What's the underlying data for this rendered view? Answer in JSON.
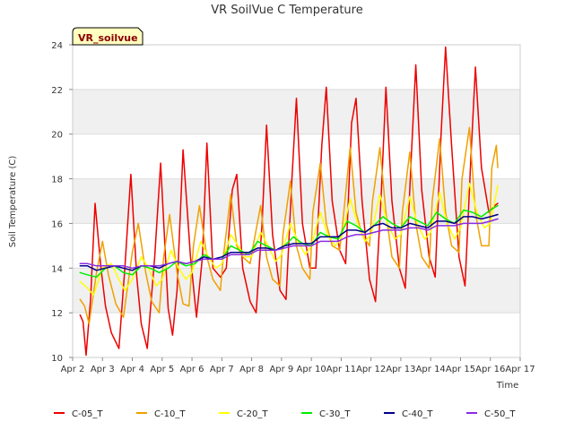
{
  "chart_data": {
    "type": "line",
    "title": "VR SoilVue C Temperature",
    "xlabel": "Time",
    "ylabel": "Soil Temperature (C)",
    "station_badge": "VR_soilvue",
    "x_unit": "date (day of April)",
    "xlim": [
      2,
      17
    ],
    "ylim": [
      10,
      24
    ],
    "x_ticks": [
      2,
      3,
      4,
      5,
      6,
      7,
      8,
      9,
      10,
      11,
      12,
      13,
      14,
      15,
      16,
      17
    ],
    "x_tick_labels": [
      "Apr 2",
      "Apr 3",
      "Apr 4",
      "Apr 5",
      "Apr 6",
      "Apr 7",
      "Apr 8",
      "Apr 9",
      "Apr 10",
      "Apr 11",
      "Apr 12",
      "Apr 13",
      "Apr 14",
      "Apr 15",
      "Apr 16",
      "Apr 17"
    ],
    "y_ticks": [
      10,
      12,
      14,
      16,
      18,
      20,
      22,
      24
    ],
    "y_tick_labels": [
      "10",
      "12",
      "14",
      "16",
      "18",
      "20",
      "22",
      "24"
    ],
    "grid": "horizontal bands",
    "legend_placement": "bottom",
    "series": [
      {
        "name": "C-05_T",
        "color": "#ee0000",
        "width": 1.5,
        "x": [
          2.25,
          2.35,
          2.45,
          2.6,
          2.75,
          2.95,
          3.1,
          3.3,
          3.55,
          3.75,
          3.95,
          4.15,
          4.3,
          4.5,
          4.75,
          4.95,
          5.2,
          5.35,
          5.5,
          5.7,
          5.95,
          6.15,
          6.35,
          6.5,
          6.7,
          6.95,
          7.15,
          7.35,
          7.5,
          7.7,
          7.95,
          8.15,
          8.35,
          8.5,
          8.7,
          8.95,
          9.15,
          9.35,
          9.5,
          9.7,
          9.95,
          10.15,
          10.35,
          10.5,
          10.7,
          10.95,
          11.15,
          11.35,
          11.5,
          11.7,
          11.95,
          12.15,
          12.35,
          12.5,
          12.7,
          12.95,
          13.15,
          13.35,
          13.5,
          13.7,
          13.95,
          14.15,
          14.35,
          14.5,
          14.7,
          14.95,
          15.15,
          15.35,
          15.5,
          15.7,
          15.95,
          16.15,
          16.25
        ],
        "y": [
          11.9,
          11.6,
          10.1,
          12.6,
          16.9,
          14.0,
          12.3,
          11.1,
          10.4,
          14.0,
          18.2,
          13.6,
          11.5,
          10.4,
          14.5,
          18.7,
          12.2,
          11.0,
          13.0,
          19.3,
          14.5,
          11.8,
          14.5,
          19.6,
          14.0,
          13.6,
          14.0,
          17.5,
          18.2,
          14.0,
          12.5,
          12.0,
          16.0,
          20.4,
          15.5,
          13.0,
          12.6,
          18.0,
          21.6,
          16.0,
          14.0,
          14.0,
          19.5,
          22.1,
          17.0,
          14.8,
          14.2,
          20.5,
          21.6,
          17.0,
          13.5,
          12.5,
          17.5,
          22.1,
          17.0,
          14.0,
          13.1,
          19.0,
          23.1,
          17.5,
          14.5,
          13.6,
          20.0,
          23.9,
          19.5,
          14.5,
          13.2,
          19.0,
          23.0,
          18.5,
          16.5,
          16.8,
          16.9
        ]
      },
      {
        "name": "C-10_T",
        "color": "#f0a000",
        "width": 1.5,
        "x": [
          2.25,
          2.4,
          2.55,
          2.8,
          3.0,
          3.2,
          3.45,
          3.7,
          4.0,
          4.2,
          4.45,
          4.65,
          4.9,
          5.05,
          5.25,
          5.5,
          5.7,
          5.9,
          6.05,
          6.25,
          6.5,
          6.7,
          6.95,
          7.05,
          7.3,
          7.5,
          7.7,
          7.95,
          8.05,
          8.3,
          8.5,
          8.7,
          8.95,
          9.05,
          9.3,
          9.5,
          9.7,
          9.95,
          10.05,
          10.3,
          10.5,
          10.7,
          10.95,
          11.05,
          11.3,
          11.5,
          11.7,
          11.95,
          12.05,
          12.3,
          12.5,
          12.7,
          12.95,
          13.05,
          13.3,
          13.5,
          13.7,
          13.95,
          14.05,
          14.3,
          14.5,
          14.7,
          14.95,
          15.05,
          15.3,
          15.5,
          15.7,
          15.95,
          16.05,
          16.2,
          16.25
        ],
        "y": [
          12.6,
          12.3,
          11.5,
          13.8,
          15.2,
          13.7,
          12.4,
          11.8,
          14.7,
          16.0,
          13.8,
          12.5,
          12.0,
          14.5,
          16.4,
          13.8,
          12.4,
          12.3,
          15.0,
          16.8,
          14.5,
          13.5,
          13.0,
          14.5,
          17.3,
          15.0,
          14.5,
          14.2,
          15.0,
          16.8,
          14.5,
          13.5,
          13.2,
          15.5,
          17.9,
          15.0,
          14.0,
          13.5,
          16.5,
          18.7,
          16.0,
          15.0,
          14.8,
          16.0,
          19.4,
          16.5,
          15.5,
          15.0,
          17.0,
          19.4,
          16.5,
          14.5,
          14.0,
          16.5,
          19.2,
          16.0,
          14.5,
          14.0,
          17.0,
          19.8,
          16.5,
          15.0,
          14.7,
          18.0,
          20.3,
          16.5,
          15.0,
          15.0,
          18.5,
          19.5,
          18.5
        ]
      },
      {
        "name": "C-20_T",
        "color": "#ffff00",
        "width": 1.5,
        "x": [
          2.25,
          2.5,
          2.7,
          3.0,
          3.3,
          3.55,
          3.75,
          4.0,
          4.3,
          4.55,
          4.8,
          5.0,
          5.3,
          5.55,
          5.8,
          6.0,
          6.3,
          6.55,
          6.8,
          7.0,
          7.3,
          7.55,
          7.8,
          8.0,
          8.3,
          8.55,
          8.8,
          9.0,
          9.3,
          9.55,
          9.8,
          10.0,
          10.3,
          10.55,
          10.8,
          11.0,
          11.3,
          11.55,
          11.8,
          12.0,
          12.3,
          12.55,
          12.8,
          13.0,
          13.3,
          13.55,
          13.8,
          14.0,
          14.3,
          14.55,
          14.8,
          15.0,
          15.3,
          15.55,
          15.8,
          16.0,
          16.25
        ],
        "y": [
          13.4,
          13.1,
          12.8,
          14.0,
          14.2,
          13.5,
          13.0,
          13.5,
          14.5,
          14.0,
          13.2,
          13.5,
          14.8,
          14.0,
          13.5,
          13.8,
          15.2,
          14.5,
          14.0,
          14.2,
          15.5,
          15.0,
          14.5,
          14.5,
          15.6,
          15.0,
          14.3,
          14.6,
          16.0,
          15.2,
          14.6,
          15.0,
          16.5,
          15.5,
          15.0,
          15.3,
          17.1,
          16.0,
          15.2,
          15.5,
          17.3,
          16.0,
          15.3,
          15.5,
          17.2,
          16.0,
          15.3,
          15.6,
          17.4,
          16.0,
          15.3,
          15.8,
          17.8,
          16.5,
          15.8,
          16.0,
          17.7
        ]
      },
      {
        "name": "C-30_T",
        "color": "#00ee00",
        "width": 1.5,
        "x": [
          2.25,
          2.5,
          2.8,
          3.1,
          3.4,
          3.7,
          4.0,
          4.3,
          4.6,
          4.9,
          5.2,
          5.5,
          5.8,
          6.1,
          6.4,
          6.7,
          7.0,
          7.3,
          7.6,
          7.9,
          8.2,
          8.5,
          8.8,
          9.1,
          9.4,
          9.7,
          10.0,
          10.3,
          10.6,
          10.9,
          11.2,
          11.5,
          11.8,
          12.1,
          12.4,
          12.7,
          13.0,
          13.3,
          13.6,
          13.9,
          14.2,
          14.5,
          14.8,
          15.1,
          15.4,
          15.7,
          16.0,
          16.25
        ],
        "y": [
          13.8,
          13.7,
          13.6,
          14.0,
          14.1,
          13.8,
          13.7,
          14.1,
          14.0,
          13.8,
          14.0,
          14.3,
          14.1,
          14.2,
          14.6,
          14.4,
          14.4,
          15.0,
          14.8,
          14.6,
          15.2,
          15.0,
          14.8,
          15.0,
          15.4,
          15.1,
          15.0,
          15.6,
          15.4,
          15.3,
          16.1,
          15.9,
          15.6,
          15.9,
          16.3,
          16.0,
          15.8,
          16.3,
          16.1,
          15.9,
          16.5,
          16.2,
          16.0,
          16.6,
          16.5,
          16.3,
          16.6,
          16.8
        ]
      },
      {
        "name": "C-40_T",
        "color": "#00008b",
        "width": 1.5,
        "x": [
          2.25,
          2.5,
          2.8,
          3.1,
          3.4,
          3.7,
          4.0,
          4.3,
          4.6,
          4.9,
          5.2,
          5.5,
          5.8,
          6.1,
          6.4,
          6.7,
          7.0,
          7.3,
          7.6,
          7.9,
          8.2,
          8.5,
          8.8,
          9.1,
          9.4,
          9.7,
          10.0,
          10.3,
          10.6,
          10.9,
          11.2,
          11.5,
          11.8,
          12.1,
          12.4,
          12.7,
          13.0,
          13.3,
          13.6,
          13.9,
          14.2,
          14.5,
          14.8,
          15.1,
          15.4,
          15.7,
          16.0,
          16.25
        ],
        "y": [
          14.1,
          14.1,
          13.9,
          14.0,
          14.1,
          14.0,
          13.9,
          14.1,
          14.1,
          14.0,
          14.2,
          14.3,
          14.2,
          14.3,
          14.5,
          14.4,
          14.5,
          14.7,
          14.7,
          14.7,
          14.9,
          14.9,
          14.8,
          15.0,
          15.1,
          15.1,
          15.1,
          15.4,
          15.4,
          15.4,
          15.7,
          15.7,
          15.6,
          15.9,
          16.0,
          15.8,
          15.8,
          16.0,
          15.9,
          15.8,
          16.1,
          16.1,
          16.0,
          16.3,
          16.3,
          16.2,
          16.3,
          16.4
        ]
      },
      {
        "name": "C-50_T",
        "color": "#8a2be2",
        "width": 1.5,
        "x": [
          2.25,
          2.5,
          2.8,
          3.1,
          3.4,
          3.7,
          4.0,
          4.3,
          4.6,
          4.9,
          5.2,
          5.5,
          5.8,
          6.1,
          6.4,
          6.7,
          7.0,
          7.3,
          7.6,
          7.9,
          8.2,
          8.5,
          8.8,
          9.1,
          9.4,
          9.7,
          10.0,
          10.3,
          10.6,
          10.9,
          11.2,
          11.5,
          11.8,
          12.1,
          12.4,
          12.7,
          13.0,
          13.3,
          13.6,
          13.9,
          14.2,
          14.5,
          14.8,
          15.1,
          15.4,
          15.7,
          16.0,
          16.25
        ],
        "y": [
          14.2,
          14.2,
          14.1,
          14.1,
          14.1,
          14.1,
          14.0,
          14.1,
          14.1,
          14.1,
          14.2,
          14.3,
          14.2,
          14.3,
          14.4,
          14.4,
          14.4,
          14.6,
          14.6,
          14.6,
          14.8,
          14.8,
          14.8,
          14.9,
          15.0,
          15.0,
          15.0,
          15.2,
          15.2,
          15.2,
          15.4,
          15.5,
          15.5,
          15.6,
          15.7,
          15.7,
          15.7,
          15.8,
          15.8,
          15.7,
          15.9,
          15.9,
          15.9,
          16.0,
          16.0,
          16.0,
          16.1,
          16.2
        ]
      }
    ]
  }
}
